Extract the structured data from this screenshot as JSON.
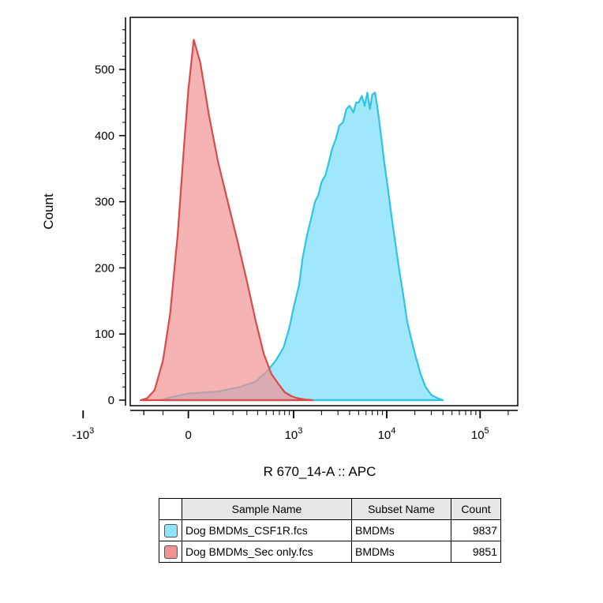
{
  "chart_data": {
    "type": "area",
    "title": "",
    "xlabel": "R 670_14-A :: APC",
    "ylabel": "Count",
    "x_scale": "biexponential",
    "xlim": [
      -2000,
      200000
    ],
    "ylim": [
      0,
      580
    ],
    "y_ticks": [
      0,
      100,
      200,
      300,
      400,
      500
    ],
    "x_ticks": [
      {
        "value": -1000,
        "base": "-10",
        "exp": "3"
      },
      {
        "value": 0,
        "base": "0",
        "exp": ""
      },
      {
        "value": 1000,
        "base": "10",
        "exp": "3"
      },
      {
        "value": 10000,
        "base": "10",
        "exp": "4"
      },
      {
        "value": 100000,
        "base": "10",
        "exp": "5"
      }
    ],
    "grid": false,
    "series": [
      {
        "name": "Dog BMDMs_CSF1R.fcs",
        "color": "#2ec4e6",
        "fill": "#8fe3fa",
        "points": [
          [
            -110,
            0
          ],
          [
            -60,
            5
          ],
          [
            0,
            10
          ],
          [
            120,
            13
          ],
          [
            250,
            20
          ],
          [
            380,
            28
          ],
          [
            520,
            45
          ],
          [
            640,
            60
          ],
          [
            780,
            80
          ],
          [
            900,
            110
          ],
          [
            1000,
            140
          ],
          [
            1150,
            175
          ],
          [
            1250,
            215
          ],
          [
            1400,
            250
          ],
          [
            1550,
            275
          ],
          [
            1700,
            300
          ],
          [
            1850,
            310
          ],
          [
            2000,
            330
          ],
          [
            2200,
            340
          ],
          [
            2400,
            360
          ],
          [
            2600,
            380
          ],
          [
            2850,
            395
          ],
          [
            3100,
            415
          ],
          [
            3400,
            420
          ],
          [
            3700,
            440
          ],
          [
            4000,
            445
          ],
          [
            4400,
            435
          ],
          [
            4700,
            450
          ],
          [
            5000,
            450
          ],
          [
            5400,
            460
          ],
          [
            5800,
            445
          ],
          [
            6200,
            465
          ],
          [
            6600,
            440
          ],
          [
            7000,
            462
          ],
          [
            7500,
            465
          ],
          [
            8000,
            440
          ],
          [
            8700,
            400
          ],
          [
            9400,
            360
          ],
          [
            10300,
            320
          ],
          [
            11200,
            280
          ],
          [
            12300,
            240
          ],
          [
            13500,
            200
          ],
          [
            15000,
            160
          ],
          [
            16500,
            120
          ],
          [
            18500,
            90
          ],
          [
            20500,
            65
          ],
          [
            23000,
            40
          ],
          [
            26000,
            20
          ],
          [
            30000,
            8
          ],
          [
            35000,
            3
          ],
          [
            40000,
            0
          ]
        ]
      },
      {
        "name": "Dog BMDMs_Sec only.fcs",
        "color": "#d94a4a",
        "fill": "#f29393",
        "points": [
          [
            -220,
            0
          ],
          [
            -180,
            3
          ],
          [
            -140,
            15
          ],
          [
            -100,
            60
          ],
          [
            -70,
            130
          ],
          [
            -40,
            250
          ],
          [
            -15,
            390
          ],
          [
            0,
            470
          ],
          [
            20,
            545
          ],
          [
            45,
            510
          ],
          [
            80,
            430
          ],
          [
            120,
            360
          ],
          [
            170,
            300
          ],
          [
            230,
            240
          ],
          [
            300,
            180
          ],
          [
            380,
            120
          ],
          [
            470,
            70
          ],
          [
            570,
            40
          ],
          [
            680,
            25
          ],
          [
            800,
            12
          ],
          [
            950,
            6
          ],
          [
            1100,
            3
          ],
          [
            1350,
            1
          ],
          [
            1600,
            0
          ]
        ]
      }
    ]
  },
  "legend": {
    "headers": {
      "sample": "Sample Name",
      "subset": "Subset Name",
      "count": "Count"
    },
    "rows": [
      {
        "color": "#8fe3fa",
        "sample": "Dog BMDMs_CSF1R.fcs",
        "subset": "BMDMs",
        "count": "9837"
      },
      {
        "color": "#f29393",
        "sample": "Dog BMDMs_Sec only.fcs",
        "subset": "BMDMs",
        "count": "9851"
      }
    ]
  }
}
